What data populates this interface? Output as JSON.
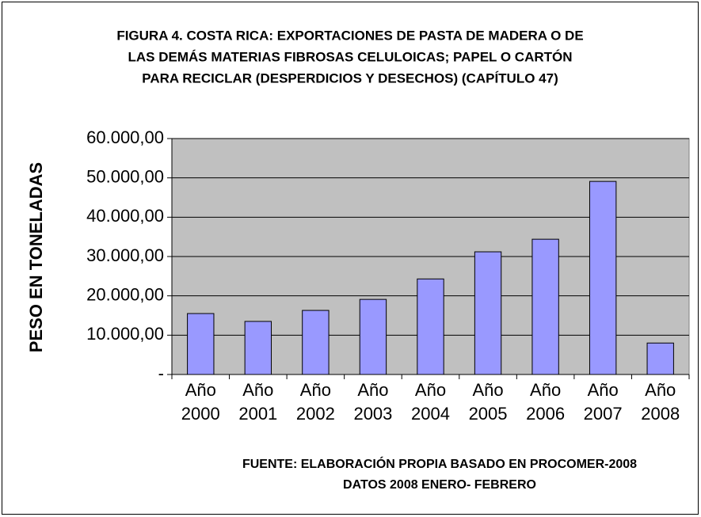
{
  "chart_data": {
    "type": "bar",
    "title": [
      "FIGURA 4. COSTA RICA: EXPORTACIONES DE PASTA DE MADERA O DE",
      "LAS DEMÁS MATERIAS FIBROSAS CELULOICAS; PAPEL O CARTÓN",
      "PARA RECICLAR (DESPERDICIOS Y DESECHOS) (CAPÍTULO 47)"
    ],
    "y_label": "PESO EN TONELADAS",
    "notes": [
      "FUENTE: ELABORACIÓN PROPIA BASADO EN PROCOMER-2008",
      "DATOS 2008 ENERO- FEBRERO"
    ],
    "categories": [
      "Año 2000",
      "Año 2001",
      "Año 2002",
      "Año 2003",
      "Año 2004",
      "Año 2005",
      "Año 2006",
      "Año 2007",
      "Año 2008"
    ],
    "values": [
      15500,
      13500,
      16300,
      19100,
      24300,
      31200,
      34400,
      49100,
      8000
    ],
    "color": "#9999ff",
    "ylim": [
      0,
      60000
    ],
    "yticks": [
      {
        "value": 0,
        "label": "-"
      },
      {
        "value": 10000,
        "label": "10.000,00"
      },
      {
        "value": 20000,
        "label": "20.000,00"
      },
      {
        "value": 30000,
        "label": "30.000,00"
      },
      {
        "value": 40000,
        "label": "40.000,00"
      },
      {
        "value": 50000,
        "label": "50.000,00"
      },
      {
        "value": 60000,
        "label": "60.000,00"
      }
    ],
    "grid": true
  }
}
